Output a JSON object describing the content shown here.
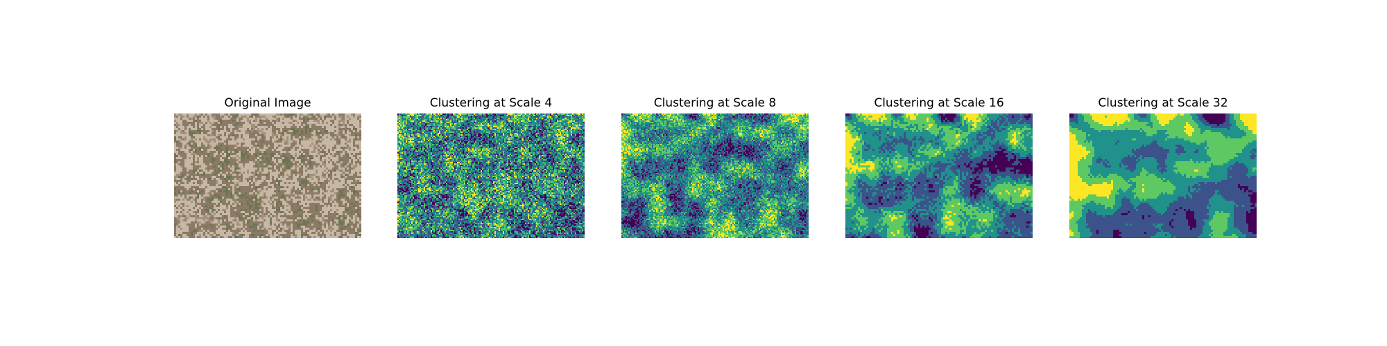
{
  "figure": {
    "panels": [
      {
        "title": "Original Image",
        "kind": "photo"
      },
      {
        "title": "Clustering at Scale 4",
        "kind": "clusters",
        "scale": 4
      },
      {
        "title": "Clustering at Scale 8",
        "kind": "clusters",
        "scale": 8
      },
      {
        "title": "Clustering at Scale 16",
        "kind": "clusters",
        "scale": 16
      },
      {
        "title": "Clustering at Scale 32",
        "kind": "clusters",
        "scale": 32
      }
    ],
    "cluster_colors": [
      "#440154",
      "#3b528b",
      "#21918c",
      "#5ec962",
      "#fde725"
    ],
    "photo_colors": [
      "#b8a48e",
      "#a39079",
      "#c7b8a6",
      "#8a7a66",
      "#6d7550",
      "#d2c6b8"
    ]
  }
}
